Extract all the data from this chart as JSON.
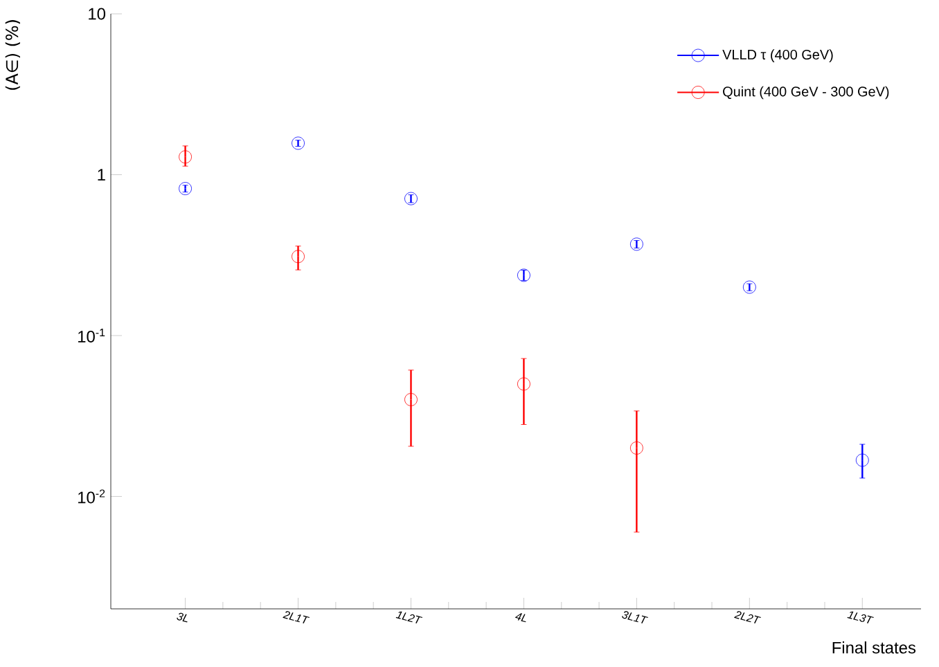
{
  "chart_data": {
    "type": "scatter",
    "categories": [
      "3L",
      "2L1T",
      "1L2T",
      "4L",
      "3L1T",
      "2L2T",
      "1L3T"
    ],
    "series": [
      {
        "name": "VLLD τ (400 GeV)",
        "color": "#0000ff",
        "values": [
          0.82,
          1.57,
          0.71,
          0.237,
          0.37,
          0.2,
          0.0168
        ],
        "errors": [
          [
            0.78,
            0.86
          ],
          [
            1.5,
            1.64
          ],
          [
            0.67,
            0.75
          ],
          [
            0.22,
            0.255
          ],
          [
            0.35,
            0.39
          ],
          [
            0.19,
            0.21
          ],
          [
            0.013,
            0.0211
          ]
        ]
      },
      {
        "name": "Quint (400 GeV - 300 GeV)",
        "color": "#ff0000",
        "values": [
          1.29,
          0.31,
          0.04,
          0.05,
          0.02,
          null,
          null
        ],
        "errors": [
          [
            1.13,
            1.51
          ],
          [
            0.256,
            0.36
          ],
          [
            0.0205,
            0.061
          ],
          [
            0.028,
            0.072
          ],
          [
            0.006,
            0.034
          ],
          null,
          null
        ]
      }
    ],
    "xlabel": "Final states",
    "ylabel": "(A∈) (%)",
    "log": "y",
    "ylim": [
      0.002,
      10
    ],
    "yticks": [
      10,
      1,
      {
        "value": 0.1,
        "label": "10$^{-1}$"
      },
      {
        "value": 0.01,
        "label": "10$^{-2}$"
      }
    ],
    "grid": false,
    "legend": "top right",
    "marker": "circle"
  }
}
